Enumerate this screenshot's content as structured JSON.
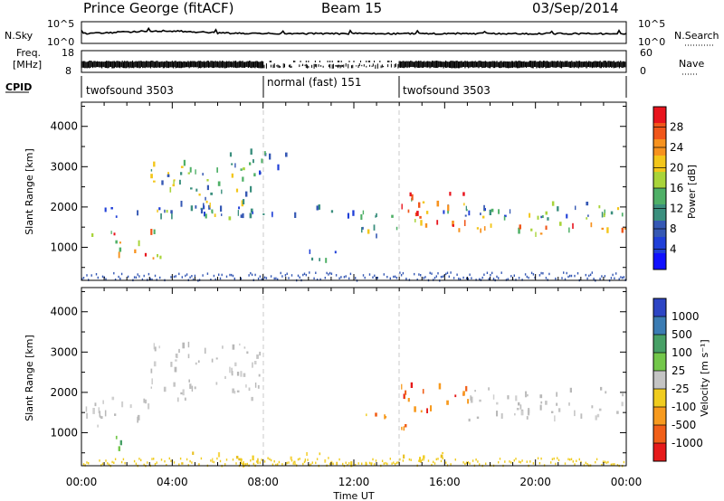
{
  "header": {
    "station": "Prince George (fitACF)",
    "beam": "Beam 15",
    "date": "03/Sep/2014"
  },
  "noise_panel": {
    "left_label": "N.Sky",
    "right_label": "N.Search",
    "left_ticks": [
      "10^5",
      "10^0"
    ],
    "right_ticks": [
      "10^5",
      "10^0"
    ]
  },
  "freq_panel": {
    "left_label_line1": "Freq.",
    "left_label_line2": "[MHz]",
    "left_ticks": [
      "18",
      "8"
    ],
    "right_label": "Nave",
    "right_ticks": [
      "60",
      "0"
    ]
  },
  "cpid": {
    "label": "CPID",
    "segments": [
      {
        "text": "twofsound 3503",
        "start_hour": 0,
        "end_hour": 8
      },
      {
        "text": "normal (fast) 151",
        "start_hour": 8,
        "end_hour": 14
      },
      {
        "text": "twofsound 3503",
        "start_hour": 14,
        "end_hour": 24
      }
    ]
  },
  "power_colorbar": {
    "label": "Power [dB]",
    "ticks": [
      "28",
      "24",
      "20",
      "16",
      "12",
      "8",
      "4"
    ],
    "colors": [
      "#e8141d",
      "#f0561a",
      "#f7921e",
      "#f3c61a",
      "#a9d43a",
      "#4fb067",
      "#3b8f7e",
      "#3558b4",
      "#1f3fd8",
      "#1010ff"
    ]
  },
  "velocity_colorbar": {
    "label": "Velocity [m s⁻¹]",
    "ticks": [
      "1000",
      "500",
      "100",
      "25",
      "-25",
      "-100",
      "-500",
      "-1000"
    ],
    "colors": [
      "#2d45c4",
      "#3b7cb3",
      "#47a066",
      "#73c74a",
      "#c4c4c4",
      "#f0cc1e",
      "#f79a1e",
      "#f15f18",
      "#e61a1a"
    ]
  },
  "chart_data": [
    {
      "type": "heatmap",
      "name": "power",
      "xlabel": "",
      "ylabel": "Slant Range [km]",
      "xlim": [
        0,
        24
      ],
      "ylim": [
        180,
        4600
      ],
      "yticks": [
        1000,
        2000,
        3000,
        4000
      ],
      "xticks": [
        0,
        4,
        8,
        12,
        16,
        20,
        24
      ],
      "xticklabels": [
        "00:00",
        "04:00",
        "08:00",
        "12:00",
        "16:00",
        "20:00",
        "00:00"
      ],
      "colorbar": "Power [dB]",
      "scatter_bands": [
        {
          "t": [
            0.0,
            24.0
          ],
          "r": [
            1750,
            2000
          ],
          "level": "low"
        },
        {
          "t": [
            0.0,
            3.2
          ],
          "r": [
            1100,
            1400
          ],
          "level": "high"
        },
        {
          "t": [
            1.5,
            3.5
          ],
          "r": [
            600,
            1000
          ],
          "level": "high"
        },
        {
          "t": [
            3.0,
            7.5
          ],
          "r": [
            1700,
            3100
          ],
          "level": "mid"
        },
        {
          "t": [
            6.5,
            9.0
          ],
          "r": [
            2700,
            3400
          ],
          "level": "low"
        },
        {
          "t": [
            9.5,
            11.5
          ],
          "r": [
            600,
            900
          ],
          "level": "low"
        },
        {
          "t": [
            12.3,
            14.0
          ],
          "r": [
            1100,
            1500
          ],
          "level": "mid"
        },
        {
          "t": [
            14.0,
            17.0
          ],
          "r": [
            1500,
            2400
          ],
          "level": "high"
        },
        {
          "t": [
            16.0,
            24.0
          ],
          "r": [
            1300,
            1600
          ],
          "level": "high"
        },
        {
          "t": [
            17.5,
            24.0
          ],
          "r": [
            1700,
            2100
          ],
          "level": "mid"
        }
      ]
    },
    {
      "type": "heatmap",
      "name": "velocity",
      "xlabel": "Time UT",
      "ylabel": "Slant Range [km]",
      "xlim": [
        0,
        24
      ],
      "ylim": [
        180,
        4600
      ],
      "yticks": [
        1000,
        2000,
        3000,
        4000
      ],
      "xticks": [
        0,
        4,
        8,
        12,
        16,
        20,
        24
      ],
      "xticklabels": [
        "00:00",
        "04:00",
        "08:00",
        "12:00",
        "16:00",
        "20:00",
        "00:00"
      ],
      "colorbar": "Velocity [m s⁻¹]",
      "scatter_bands": [
        {
          "t": [
            0.0,
            3.0
          ],
          "r": [
            1100,
            1900
          ],
          "level": "ground"
        },
        {
          "t": [
            3.0,
            8.0
          ],
          "r": [
            1800,
            3200
          ],
          "level": "ground"
        },
        {
          "t": [
            1.5,
            2.5
          ],
          "r": [
            600,
            900
          ],
          "level": "green"
        },
        {
          "t": [
            12.3,
            14.3
          ],
          "r": [
            1100,
            1500
          ],
          "level": "neg"
        },
        {
          "t": [
            14.0,
            17.0
          ],
          "r": [
            1500,
            2200
          ],
          "level": "neg"
        },
        {
          "t": [
            17.0,
            24.0
          ],
          "r": [
            1300,
            2100
          ],
          "level": "ground"
        },
        {
          "t": [
            4.0,
            16.0
          ],
          "r": [
            200,
            500
          ],
          "level": "yellow"
        }
      ]
    }
  ]
}
